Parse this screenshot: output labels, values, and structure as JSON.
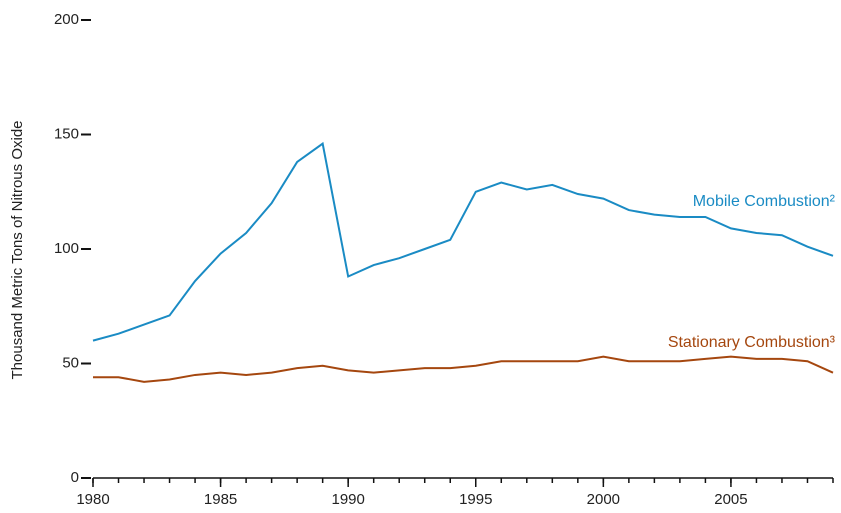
{
  "chart_data": {
    "type": "line",
    "ylabel": "Thousand Metric Tons of Nitrous Oxide",
    "x": [
      1980,
      1981,
      1982,
      1983,
      1984,
      1985,
      1986,
      1987,
      1988,
      1989,
      1990,
      1991,
      1992,
      1993,
      1994,
      1995,
      1996,
      1997,
      1998,
      1999,
      2000,
      2001,
      2002,
      2003,
      2004,
      2005,
      2006,
      2007,
      2008,
      2009
    ],
    "series": [
      {
        "name": "Mobile Combustion²",
        "color": "#1a8bc4",
        "values": [
          60,
          63,
          67,
          71,
          86,
          98,
          107,
          120,
          138,
          146,
          88,
          93,
          96,
          100,
          104,
          125,
          129,
          126,
          128,
          124,
          122,
          117,
          115,
          114,
          114,
          109,
          107,
          106,
          101,
          97
        ]
      },
      {
        "name": "Stationary Combustion³",
        "color": "#a5470f",
        "values": [
          44,
          44,
          42,
          43,
          45,
          46,
          45,
          46,
          48,
          49,
          47,
          46,
          47,
          48,
          48,
          49,
          51,
          51,
          51,
          51,
          53,
          51,
          51,
          51,
          52,
          53,
          52,
          52,
          51,
          46
        ]
      }
    ],
    "xlim": [
      1980,
      2009
    ],
    "xticks": [
      1980,
      1985,
      1990,
      1995,
      2000,
      2005
    ],
    "xticks_minor": [
      1980,
      1981,
      1982,
      1983,
      1984,
      1985,
      1986,
      1987,
      1988,
      1989,
      1990,
      1991,
      1992,
      1993,
      1994,
      1995,
      1996,
      1997,
      1998,
      1999,
      2000,
      2001,
      2002,
      2003,
      2004,
      2005,
      2006,
      2007,
      2008,
      2009
    ],
    "ylim": [
      0,
      200
    ],
    "yticks": [
      0,
      50,
      100,
      150,
      200
    ],
    "grid": false
  }
}
